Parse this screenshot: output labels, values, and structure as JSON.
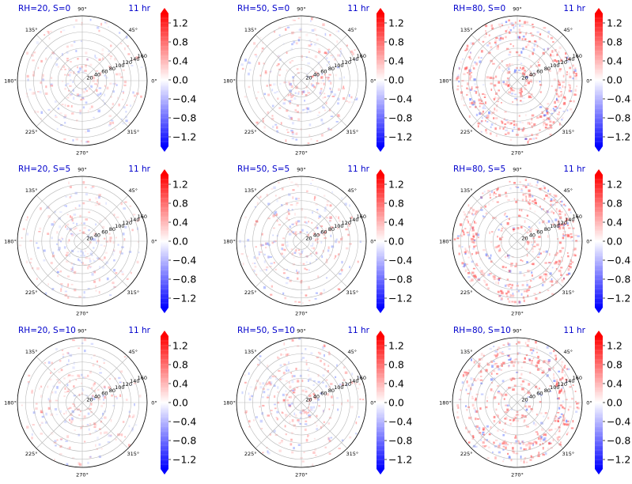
{
  "figure": {
    "time_label": "11 hr",
    "title_color": "#0000cc"
  },
  "chart_data": {
    "type": "polar-heatmap",
    "angle_ticks": [
      "0°",
      "45°",
      "90°",
      "135°",
      "180°",
      "225°",
      "270°",
      "315°"
    ],
    "radial_ticks": [
      20,
      40,
      60,
      80,
      100,
      120,
      140,
      160
    ],
    "rlim": [
      0,
      160
    ],
    "grid": true,
    "colormap": "bwr",
    "colorbar": {
      "ticks": [
        "1.2",
        "0.8",
        "0.4",
        "0.0",
        "−0.4",
        "−0.8",
        "−1.2"
      ],
      "tick_values": [
        1.2,
        0.8,
        0.4,
        0.0,
        -0.4,
        -0.8,
        -1.2
      ],
      "vmin": -1.4,
      "vmax": 1.4,
      "extend": "both",
      "placement": "right"
    },
    "panels": [
      {
        "title": "RH=20, S=0",
        "rh": 20,
        "s": 0,
        "intensity": 0.25
      },
      {
        "title": "RH=50, S=0",
        "rh": 50,
        "s": 0,
        "intensity": 0.35
      },
      {
        "title": "RH=80, S=0",
        "rh": 80,
        "s": 0,
        "intensity": 0.9
      },
      {
        "title": "RH=20, S=5",
        "rh": 20,
        "s": 5,
        "intensity": 0.25
      },
      {
        "title": "RH=50, S=5",
        "rh": 50,
        "s": 5,
        "intensity": 0.35
      },
      {
        "title": "RH=80, S=5",
        "rh": 80,
        "s": 5,
        "intensity": 0.85
      },
      {
        "title": "RH=20, S=10",
        "rh": 20,
        "s": 10,
        "intensity": 0.25
      },
      {
        "title": "RH=50, S=10",
        "rh": 50,
        "s": 10,
        "intensity": 0.35
      },
      {
        "title": "RH=80, S=10",
        "rh": 80,
        "s": 10,
        "intensity": 0.85
      }
    ]
  }
}
